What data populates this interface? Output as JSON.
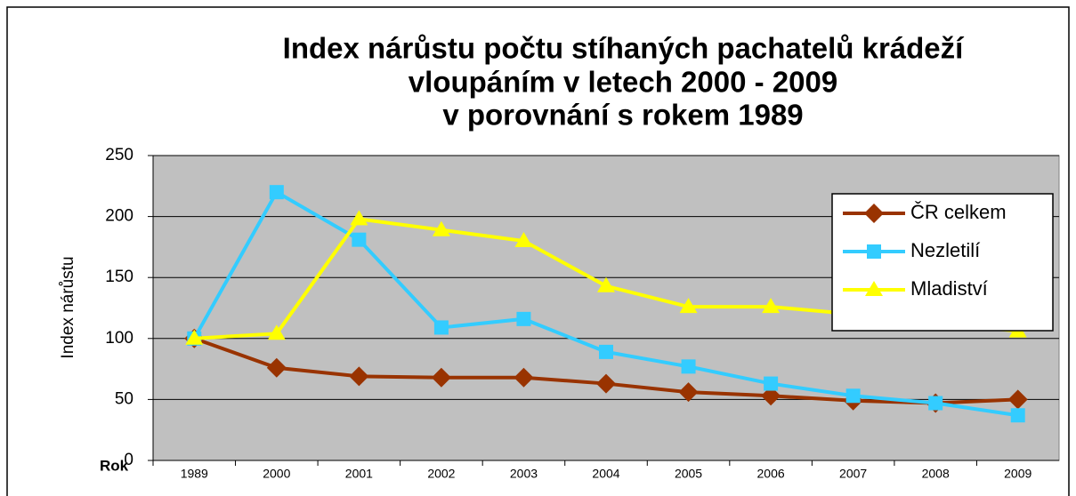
{
  "chart_data": {
    "type": "line",
    "title": [
      "Index nárůstu počtu stíhaných pachatelů krádeží",
      "vloupáním v letech 2000 - 2009",
      "v porovnání s rokem 1989"
    ],
    "y_label": "Index nárůstu",
    "x_label": "Rok",
    "categories": [
      "1989",
      "2000",
      "2001",
      "2002",
      "2003",
      "2004",
      "2005",
      "2006",
      "2007",
      "2008",
      "2009"
    ],
    "series": [
      {
        "name": "ČR celkem",
        "color": "#993300",
        "marker": "diamond",
        "values": [
          100,
          76,
          69,
          68,
          68,
          63,
          56,
          53,
          49,
          47,
          50
        ]
      },
      {
        "name": "Nezletilí",
        "color": "#33ccff",
        "marker": "square",
        "values": [
          100,
          220,
          181,
          109,
          116,
          89,
          77,
          63,
          53,
          47,
          37
        ]
      },
      {
        "name": "Mladiství",
        "color": "#ffff00",
        "marker": "triangle",
        "values": [
          100,
          104,
          198,
          189,
          180,
          143,
          126,
          126,
          120,
          113,
          106
        ]
      }
    ],
    "ylim": [
      0,
      250
    ],
    "yticks": [
      0,
      50,
      100,
      150,
      200,
      250
    ],
    "grid": true,
    "legend": "right"
  }
}
